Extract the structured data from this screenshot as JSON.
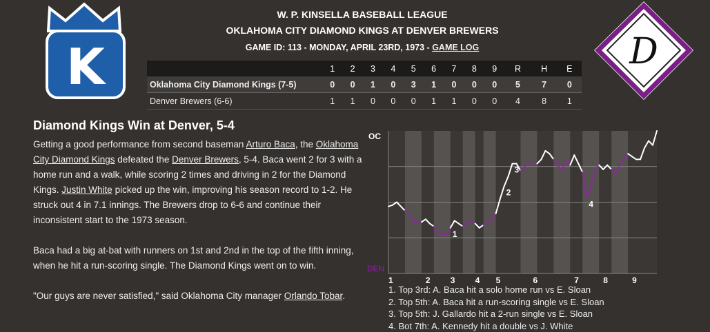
{
  "header": {
    "league": "W. P. KINSELLA BASEBALL LEAGUE",
    "matchup": "OKLAHOMA CITY DIAMOND KINGS AT DENVER BREWERS",
    "game_info": "GAME ID: 113 - MONDAY, APRIL 23RD, 1973 - ",
    "game_log_link": "GAME LOG"
  },
  "logos": {
    "away": "K",
    "home": "D"
  },
  "box_score": {
    "innings": [
      1,
      2,
      3,
      4,
      5,
      6,
      7,
      8,
      9
    ],
    "totals_labels": [
      "R",
      "H",
      "E"
    ],
    "rows": [
      {
        "team": "Oklahoma City Diamond Kings (7-5)",
        "innings": [
          0,
          0,
          1,
          0,
          3,
          1,
          0,
          0,
          0
        ],
        "totals": [
          5,
          7,
          0
        ]
      },
      {
        "team": "Denver Brewers (6-6)",
        "innings": [
          1,
          1,
          0,
          0,
          0,
          1,
          1,
          0,
          0
        ],
        "totals": [
          4,
          8,
          1
        ]
      }
    ]
  },
  "article": {
    "title": "Diamond Kings Win at Denver, 5-4",
    "paragraphs": [
      [
        "Getting a good performance from second baseman ",
        {
          "link": "Arturo Baca"
        },
        ", the ",
        {
          "link": "Oklahoma City Diamond Kings"
        },
        " defeated the ",
        {
          "link": "Denver Brewers"
        },
        ", 5-4. Baca went 2 for 3 with a home run and a walk, while scoring 2 times and driving in 2 for the Diamond Kings. ",
        {
          "link": "Justin White"
        },
        " picked up the win, improving his season record to 1-2. He struck out 4 in 7.1 innings. The Brewers drop to 6-6 and continue their inconsistent start to the 1973 season."
      ],
      [
        "Baca had a big at-bat with runners on 1st and 2nd in the top of the fifth inning, when he hit a run-scoring single. The Diamond Kings went on to win."
      ],
      [
        "\"Our guys are never satisfied,\" said Oklahoma City manager ",
        {
          "link": "Orlando Tobar"
        },
        "."
      ]
    ]
  },
  "win_probability": {
    "top_label": "OC",
    "bottom_label": "DEN",
    "ylim": [
      0,
      100
    ],
    "yticks": [
      25,
      50,
      75
    ],
    "values": [
      47,
      48,
      50,
      47,
      44,
      43,
      36,
      36,
      36,
      38,
      35,
      33,
      28,
      27,
      27,
      32,
      37,
      35,
      33,
      36,
      37,
      35,
      32,
      34,
      36,
      37,
      42,
      52,
      61,
      68,
      77,
      77,
      72,
      75,
      77,
      77,
      77,
      80,
      86,
      84,
      80,
      76,
      72,
      80,
      76,
      83,
      77,
      71,
      53,
      61,
      73,
      76,
      73,
      76,
      73,
      70,
      76,
      80,
      84,
      82,
      80,
      80,
      88,
      93,
      90,
      100
    ],
    "stripes": [
      [
        4,
        8
      ],
      [
        11,
        15
      ],
      [
        18,
        21
      ],
      [
        23,
        26
      ],
      [
        32,
        36
      ],
      [
        40,
        44
      ],
      [
        47,
        51
      ],
      [
        54,
        58
      ]
    ],
    "innings": [
      {
        "label": 1,
        "at": 0
      },
      {
        "label": 2,
        "at": 9
      },
      {
        "label": 3,
        "at": 15
      },
      {
        "label": 4,
        "at": 21
      },
      {
        "label": 5,
        "at": 26
      },
      {
        "label": 6,
        "at": 35
      },
      {
        "label": 7,
        "at": 45
      },
      {
        "label": 8,
        "at": 52
      },
      {
        "label": 9,
        "at": 59
      }
    ],
    "markers": [
      {
        "label": 1,
        "at": 15
      },
      {
        "label": 2,
        "at": 28
      },
      {
        "label": 3,
        "at": 30
      },
      {
        "label": 4,
        "at": 48
      }
    ],
    "events": [
      "1. Top 3rd: A. Baca hit a solo home run vs E. Sloan",
      "2. Top 5th: A. Baca hit a run-scoring single vs E. Sloan",
      "3. Top 5th: J. Gallardo hit a 2-run single vs E. Sloan",
      "4. Bot 7th: A. Kennedy hit a double vs J. White"
    ]
  }
}
